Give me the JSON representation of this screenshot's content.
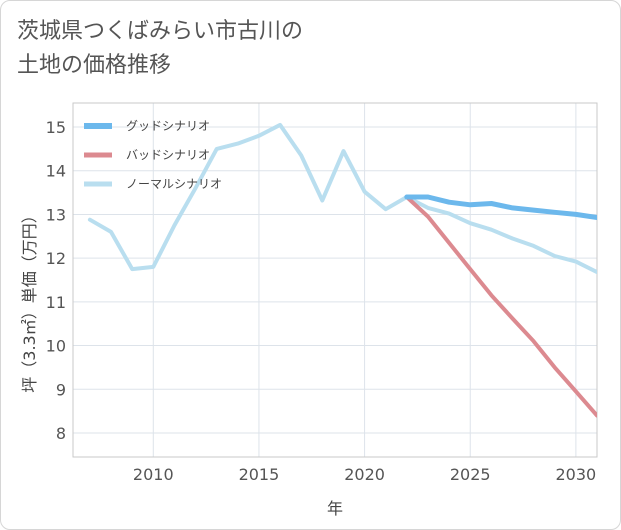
{
  "chart_data": {
    "type": "line",
    "title": "茨城県つくばみらい市古川の\n土地の価格推移",
    "xlabel": "年",
    "ylabel": "坪（3.3㎡）単価（万円）",
    "xlim": [
      2006.2,
      2031
    ],
    "ylim": [
      7.45,
      15.55
    ],
    "xticks": [
      2010,
      2015,
      2020,
      2025,
      2030
    ],
    "yticks": [
      8,
      9,
      10,
      11,
      12,
      13,
      14,
      15
    ],
    "grid": true,
    "legend_position": "top-left",
    "series": [
      {
        "name": "グッドシナリオ",
        "color": "#6cb8ec",
        "width": 5,
        "points": [
          [
            2022,
            13.4
          ],
          [
            2023,
            13.4
          ],
          [
            2024,
            13.28
          ],
          [
            2025,
            13.22
          ],
          [
            2026,
            13.25
          ],
          [
            2027,
            13.15
          ],
          [
            2028,
            13.1
          ],
          [
            2029,
            13.05
          ],
          [
            2030,
            13.0
          ],
          [
            2031,
            12.93
          ]
        ]
      },
      {
        "name": "バッドシナリオ",
        "color": "#dc8a90",
        "width": 4,
        "points": [
          [
            2022,
            13.4
          ],
          [
            2023,
            12.95
          ],
          [
            2024,
            12.35
          ],
          [
            2025,
            11.75
          ],
          [
            2026,
            11.15
          ],
          [
            2027,
            10.62
          ],
          [
            2028,
            10.1
          ],
          [
            2029,
            9.5
          ],
          [
            2030,
            8.95
          ],
          [
            2031,
            8.4
          ]
        ]
      },
      {
        "name": "ノーマルシナリオ",
        "color": "#b9deef",
        "width": 4,
        "points": [
          [
            2007,
            12.88
          ],
          [
            2008,
            12.6
          ],
          [
            2009,
            11.75
          ],
          [
            2010,
            11.8
          ],
          [
            2011,
            12.75
          ],
          [
            2012,
            13.6
          ],
          [
            2013,
            14.5
          ],
          [
            2014,
            14.62
          ],
          [
            2015,
            14.8
          ],
          [
            2016,
            15.05
          ],
          [
            2017,
            14.35
          ],
          [
            2018,
            13.32
          ],
          [
            2019,
            14.45
          ],
          [
            2020,
            13.52
          ],
          [
            2021,
            13.12
          ],
          [
            2022,
            13.4
          ],
          [
            2023,
            13.15
          ],
          [
            2024,
            13.02
          ],
          [
            2025,
            12.8
          ],
          [
            2026,
            12.65
          ],
          [
            2027,
            12.45
          ],
          [
            2028,
            12.28
          ],
          [
            2029,
            12.05
          ],
          [
            2030,
            11.92
          ],
          [
            2031,
            11.68
          ]
        ]
      }
    ]
  }
}
